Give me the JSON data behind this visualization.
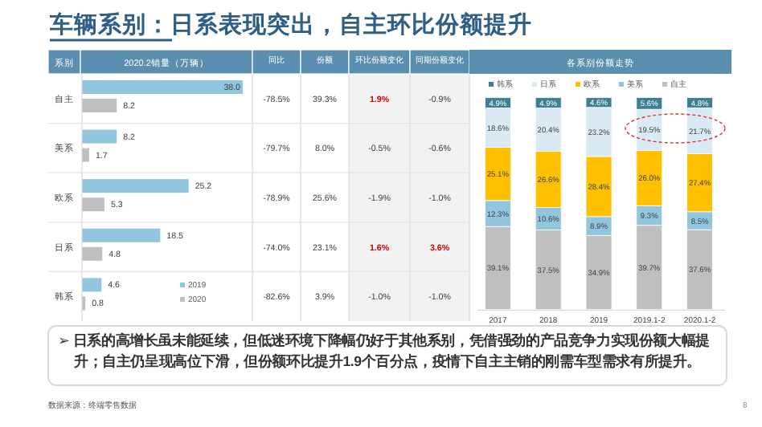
{
  "chart_data": [
    {
      "type": "other",
      "title": "车辆系别：日系表现突出，自主环比份额提升",
      "annotations": [
        "➢ 日系的高增长虽未能延续，但低迷环境下降幅仍好于其他系别，凭借强劲的产品竞争力实现份额大幅提升；自主仍呈现高位下滑，但份额环比提升1.9个百分点，疫情下自主主销的刚需车型需求有所提升。",
        "数据来源：终端零售数据",
        "8"
      ]
    },
    {
      "type": "bar",
      "orientation": "horizontal",
      "title": "2020.2销量（万辆）",
      "ylabel": "系别",
      "categories": [
        "自主",
        "美系",
        "欧系",
        "日系",
        "韩系"
      ],
      "legend": "bottom right",
      "series": [
        {
          "name": "2019",
          "color": "#92c5de",
          "values": [
            38.0,
            8.2,
            25.2,
            18.5,
            4.6
          ],
          "value_labels": [
            "38.0",
            "8.2",
            "25.2",
            "18.5",
            "4.6"
          ]
        },
        {
          "name": "2020",
          "color": "#bfbfbf",
          "values": [
            8.2,
            1.7,
            5.3,
            4.8,
            0.8
          ],
          "value_labels": [
            "8.2",
            "1.7",
            "5.3",
            "4.8",
            "0.8"
          ]
        }
      ]
    },
    {
      "type": "other",
      "categories": [
        "同比",
        "份额",
        "环比份额变化",
        "同期份额变化"
      ],
      "cell_labels": [
        [
          "-78.5%",
          "39.3%",
          "1.9%",
          "-0.9%"
        ],
        [
          "-79.7%",
          "8.0%",
          "-0.5%",
          "-0.6%"
        ],
        [
          "-78.9%",
          "25.6%",
          "-1.9%",
          "-1.0%"
        ],
        [
          "-74.0%",
          "23.1%",
          "1.6%",
          "3.6%"
        ],
        [
          "-82.6%",
          "3.9%",
          "-1.0%",
          "-1.0%"
        ]
      ],
      "colors": [
        [
          "#404040",
          "#404040",
          "#c00000",
          "#404040"
        ],
        [
          "#404040",
          "#404040",
          "#404040",
          "#404040"
        ],
        [
          "#404040",
          "#404040",
          "#404040",
          "#404040"
        ],
        [
          "#404040",
          "#404040",
          "#c00000",
          "#c00000"
        ],
        [
          "#404040",
          "#404040",
          "#404040",
          "#404040"
        ]
      ]
    },
    {
      "type": "bar",
      "stacked": true,
      "title": "各系别份额走势",
      "categories": [
        "2017",
        "2018",
        "2019",
        "2019.1-2",
        "2020.1-2"
      ],
      "legend": "top",
      "series": [
        {
          "name": "自主",
          "color": "#bfbfbf",
          "values": [
            39.1,
            37.5,
            34.9,
            39.7,
            37.6
          ],
          "value_labels": [
            "39.1%",
            "37.5%",
            "34.9%",
            "39.7%",
            "37.6%"
          ]
        },
        {
          "name": "美系",
          "color": "#92c5de",
          "values": [
            12.3,
            10.6,
            8.9,
            9.3,
            8.5
          ],
          "value_labels": [
            "12.3%",
            "10.6%",
            "8.9%",
            "9.3%",
            "8.5%"
          ]
        },
        {
          "name": "欧系",
          "color": "#ffc000",
          "values": [
            25.1,
            26.6,
            28.4,
            26.0,
            27.4
          ],
          "value_labels": [
            "25.1%",
            "26.6%",
            "28.4%",
            "26.0%",
            "27.4%"
          ]
        },
        {
          "name": "日系",
          "color": "#d9eaf5",
          "values": [
            18.6,
            20.4,
            23.2,
            19.5,
            21.7
          ],
          "value_labels": [
            "18.6%",
            "20.4%",
            "23.2%",
            "19.5%",
            "21.7%"
          ]
        },
        {
          "name": "韩系",
          "color": "#3f7f93",
          "values": [
            4.9,
            4.9,
            4.6,
            5.6,
            4.8
          ],
          "value_labels": [
            "4.9%",
            "4.9%",
            "4.6%",
            "5.6%",
            "4.8%"
          ]
        }
      ]
    }
  ]
}
